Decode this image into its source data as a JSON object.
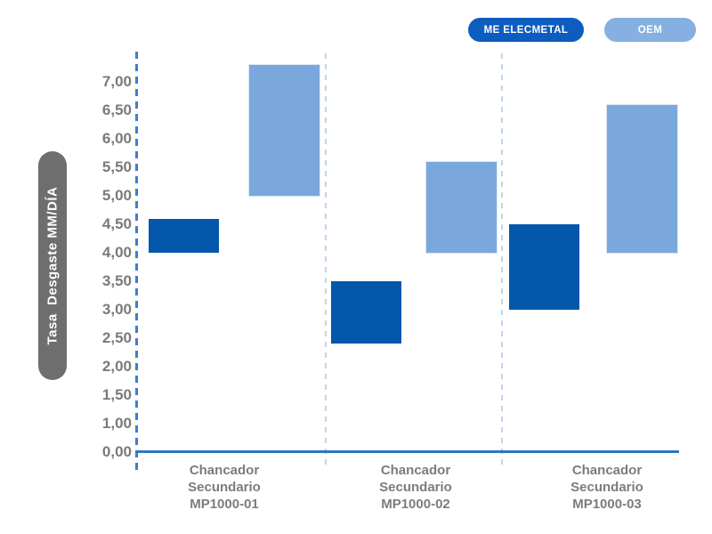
{
  "colors": {
    "me_bar": "#0557ac",
    "oem_bar": "#7ba8dc",
    "me_legend_pill": "#0d5cc0",
    "oem_legend_pill": "#85b0e1",
    "axis_line": "#2e74c4",
    "axis_dashed_line": "#3a80c8",
    "group_separator_dashed": "#bdd5ee",
    "tick_text": "#7a7a7a",
    "ytitle_pill_bg": "#6e6e6e"
  },
  "legend": {
    "items": [
      {
        "label": "ME ELECMETAL",
        "color": "#0d5cc0"
      },
      {
        "label": "OEM",
        "color": "#85b0e1"
      }
    ]
  },
  "y_axis": {
    "title": "Tasa  Desgaste MM/DÍA",
    "tick_labels": [
      "7,00",
      "6,50",
      "6,00",
      "5,50",
      "5,00",
      "4,50",
      "4,00",
      "3,50",
      "3,00",
      "2,50",
      "2,00",
      "1,50",
      "1,00",
      "0,00"
    ]
  },
  "chart_data": {
    "type": "bar",
    "subtype": "floating-range-columns",
    "title": "",
    "ylabel": "Tasa  Desgaste MM/DÍA",
    "xlabel": "",
    "ylim": [
      0,
      7.5
    ],
    "y_tick_step": 0.5,
    "y_tick_labels": [
      "0,00",
      "1,00",
      "1,50",
      "2,00",
      "2,50",
      "3,00",
      "3,50",
      "4,00",
      "4,50",
      "5,00",
      "5,50",
      "6,00",
      "6,50",
      "7,00"
    ],
    "note": "0,50 tick label is omitted on the axis; ticks are evenly spaced",
    "grid": "dashed vertical separators between categories; dashed vertical value axis",
    "legend_position": "top-right",
    "categories": [
      "Chancador Secundario MP1000-01",
      "Chancador Secundario MP1000-02",
      "Chancador Secundario MP1000-03"
    ],
    "series": [
      {
        "name": "ME ELECMETAL",
        "color": "#0557ac",
        "ranges": [
          [
            4.0,
            4.6
          ],
          [
            2.4,
            3.5
          ],
          [
            3.0,
            4.5
          ]
        ]
      },
      {
        "name": "OEM",
        "color": "#7ba8dc",
        "ranges": [
          [
            5.0,
            7.3
          ],
          [
            4.0,
            5.6
          ],
          [
            4.0,
            6.6
          ]
        ]
      }
    ]
  }
}
